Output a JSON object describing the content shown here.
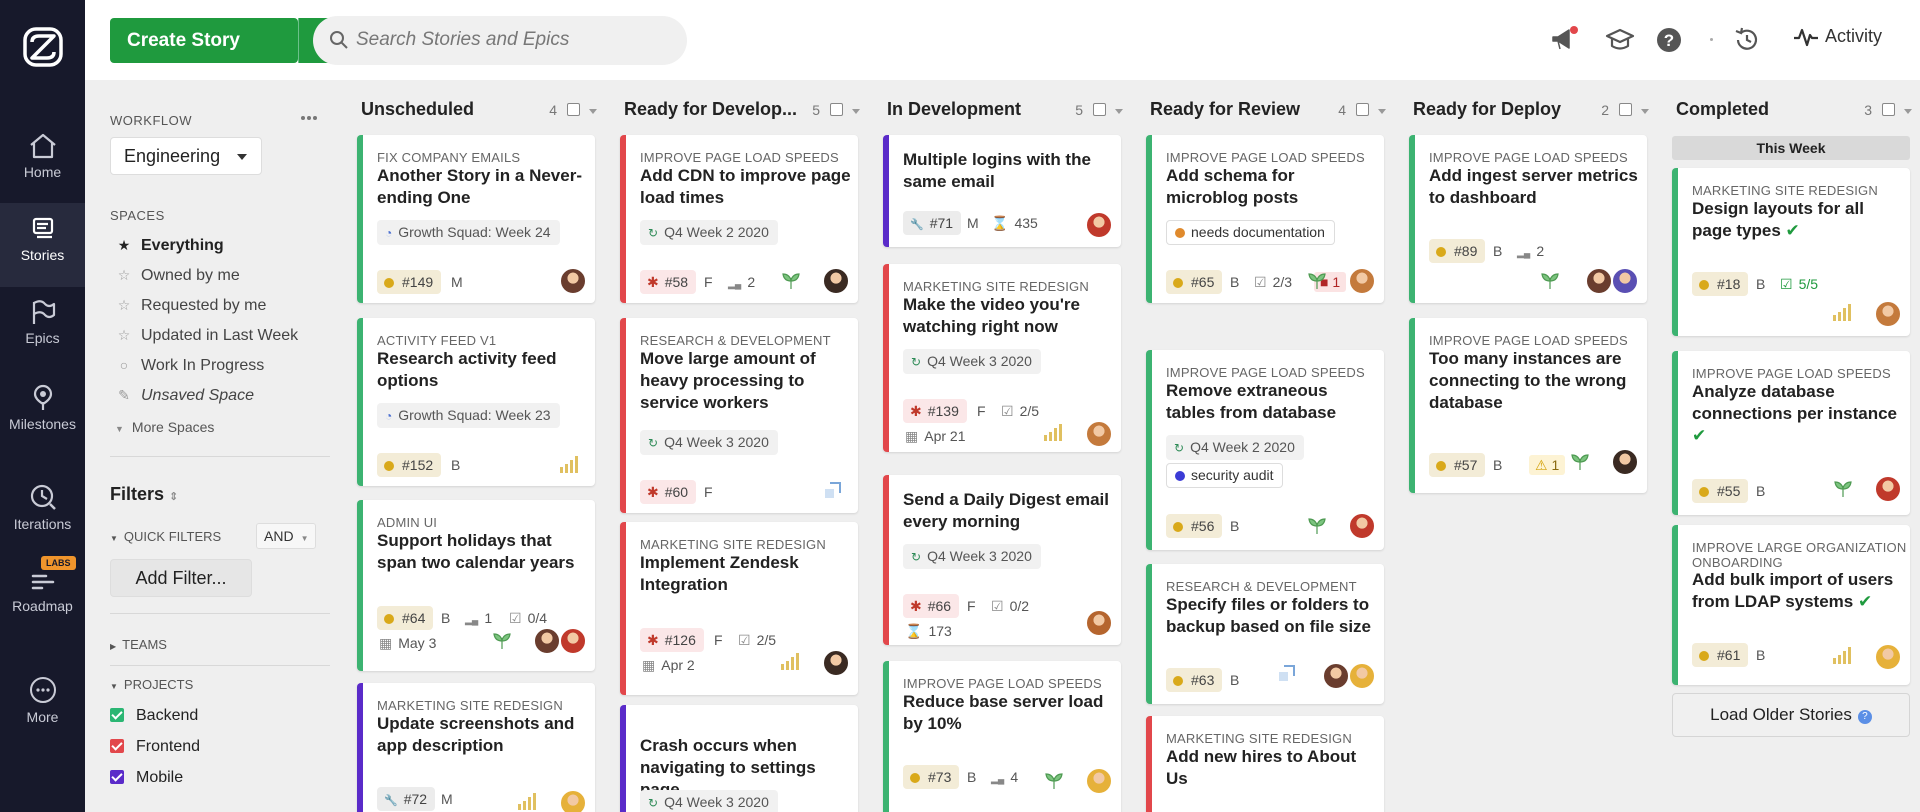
{
  "nav": {
    "items": [
      {
        "label": "Home",
        "icon": "home-icon"
      },
      {
        "label": "Stories",
        "icon": "stories-icon"
      },
      {
        "label": "Epics",
        "icon": "epics-icon"
      },
      {
        "label": "Milestones",
        "icon": "milestones-icon"
      },
      {
        "label": "Iterations",
        "icon": "iterations-icon"
      },
      {
        "label": "Roadmap",
        "icon": "roadmap-icon",
        "badge": "LABS"
      },
      {
        "label": "More",
        "icon": "more-icon"
      }
    ]
  },
  "topbar": {
    "create_label": "Create Story",
    "search_placeholder": "Search Stories and Epics",
    "activity_label": "Activity"
  },
  "filters": {
    "workflow_label": "WORKFLOW",
    "workflow_value": "Engineering",
    "spaces_label": "SPACES",
    "spaces": [
      "Everything",
      "Owned by me",
      "Requested by me",
      "Updated in Last Week",
      "Work In Progress",
      "Unsaved Space"
    ],
    "more_spaces": "More Spaces",
    "filters_title": "Filters",
    "quick_filters": "QUICK FILTERS",
    "and_value": "AND",
    "add_filter": "Add Filter...",
    "teams": "TEAMS",
    "projects_label": "PROJECTS",
    "projects": [
      {
        "name": "Backend",
        "color": "#2bb673"
      },
      {
        "name": "Frontend",
        "color": "#e2474b"
      },
      {
        "name": "Mobile",
        "color": "#5a2bc9"
      }
    ]
  },
  "columns": [
    {
      "title": "Unscheduled",
      "count": "4",
      "cards": [
        {
          "epic": "FIX COMPANY EMAILS",
          "title": "Another Story in a Never-ending One",
          "chip": "Growth Squad: Week 24",
          "id": "#149",
          "est": "M"
        },
        {
          "epic": "ACTIVITY FEED V1",
          "title": "Research activity feed options",
          "chip": "Growth Squad: Week 23",
          "id": "#152",
          "est": "B"
        },
        {
          "epic": "ADMIN UI",
          "title": "Support holidays that span two calendar years",
          "id": "#64",
          "est": "B",
          "prio": "1",
          "tasks": "0/4",
          "date": "May 3"
        },
        {
          "epic": "MARKETING SITE REDESIGN",
          "title": "Update screenshots and app description",
          "id": "#72",
          "est": "M"
        }
      ]
    },
    {
      "title": "Ready for Develop...",
      "count": "5",
      "cards": [
        {
          "epic": "IMPROVE PAGE LOAD SPEEDS",
          "title": "Add CDN to improve page load times",
          "chip": "Q4 Week 2 2020",
          "id": "#58",
          "est": "F",
          "prio": "2"
        },
        {
          "epic": "RESEARCH & DEVELOPMENT",
          "title": "Move large amount of heavy processing to service workers",
          "chip": "Q4 Week 3 2020",
          "id": "#60",
          "est": "F"
        },
        {
          "epic": "MARKETING SITE REDESIGN",
          "title": "Implement Zendesk Integration",
          "id": "#126",
          "est": "F",
          "tasks": "2/5",
          "date": "Apr 2"
        },
        {
          "title": "Crash occurs when navigating to settings page",
          "chip": "Q4 Week 3 2020"
        }
      ]
    },
    {
      "title": "In Development",
      "count": "5",
      "cards": [
        {
          "title": "Multiple logins with the same email",
          "id": "#71",
          "est": "M",
          "hours": "435"
        },
        {
          "epic": "MARKETING SITE REDESIGN",
          "title": "Make the video you're watching right now",
          "chip": "Q4 Week 3 2020",
          "id": "#139",
          "est": "F",
          "tasks": "2/5",
          "date": "Apr 21"
        },
        {
          "title": "Send a Daily Digest email every morning",
          "chip": "Q4 Week 3 2020",
          "id": "#66",
          "est": "F",
          "tasks": "0/2",
          "hours": "173"
        },
        {
          "epic": "IMPROVE PAGE LOAD SPEEDS",
          "title": "Reduce base server load by 10%",
          "id": "#73",
          "est": "B",
          "prio": "4"
        }
      ]
    },
    {
      "title": "Ready for Review",
      "count": "4",
      "cards": [
        {
          "epic": "IMPROVE PAGE LOAD SPEEDS",
          "title": "Add schema for microblog posts",
          "label": "needs documentation",
          "id": "#65",
          "est": "B",
          "tasks": "2/3",
          "blocker": "1"
        },
        {
          "epic": "IMPROVE PAGE LOAD SPEEDS",
          "title": "Remove extraneous tables from database",
          "chip": "Q4 Week 2 2020",
          "label": "security audit",
          "id": "#56",
          "est": "B"
        },
        {
          "epic": "RESEARCH & DEVELOPMENT",
          "title": "Specify files or folders to backup based on file size",
          "id": "#63",
          "est": "B"
        },
        {
          "epic": "MARKETING SITE REDESIGN",
          "title": "Add new hires to About Us"
        }
      ]
    },
    {
      "title": "Ready for Deploy",
      "count": "2",
      "cards": [
        {
          "epic": "IMPROVE PAGE LOAD SPEEDS",
          "title": "Add ingest server metrics to dashboard",
          "id": "#89",
          "est": "B",
          "prio": "2"
        },
        {
          "epic": "IMPROVE PAGE LOAD SPEEDS",
          "title": "Too many instances are connecting to the wrong database",
          "id": "#57",
          "est": "B",
          "warn": "1"
        }
      ]
    },
    {
      "title": "Completed",
      "count": "3",
      "week": "This Week",
      "load_older": "Load Older Stories",
      "cards": [
        {
          "epic": "MARKETING SITE REDESIGN",
          "title": "Design layouts for all page types",
          "id": "#18",
          "est": "B",
          "tasks": "5/5"
        },
        {
          "epic": "IMPROVE PAGE LOAD SPEEDS",
          "title": "Analyze database connections per instance",
          "id": "#55",
          "est": "B"
        },
        {
          "epic": "IMPROVE LARGE ORGANIZATION ONBOARDING",
          "title": "Add bulk import of users from LDAP systems",
          "id": "#61",
          "est": "B"
        }
      ]
    }
  ]
}
